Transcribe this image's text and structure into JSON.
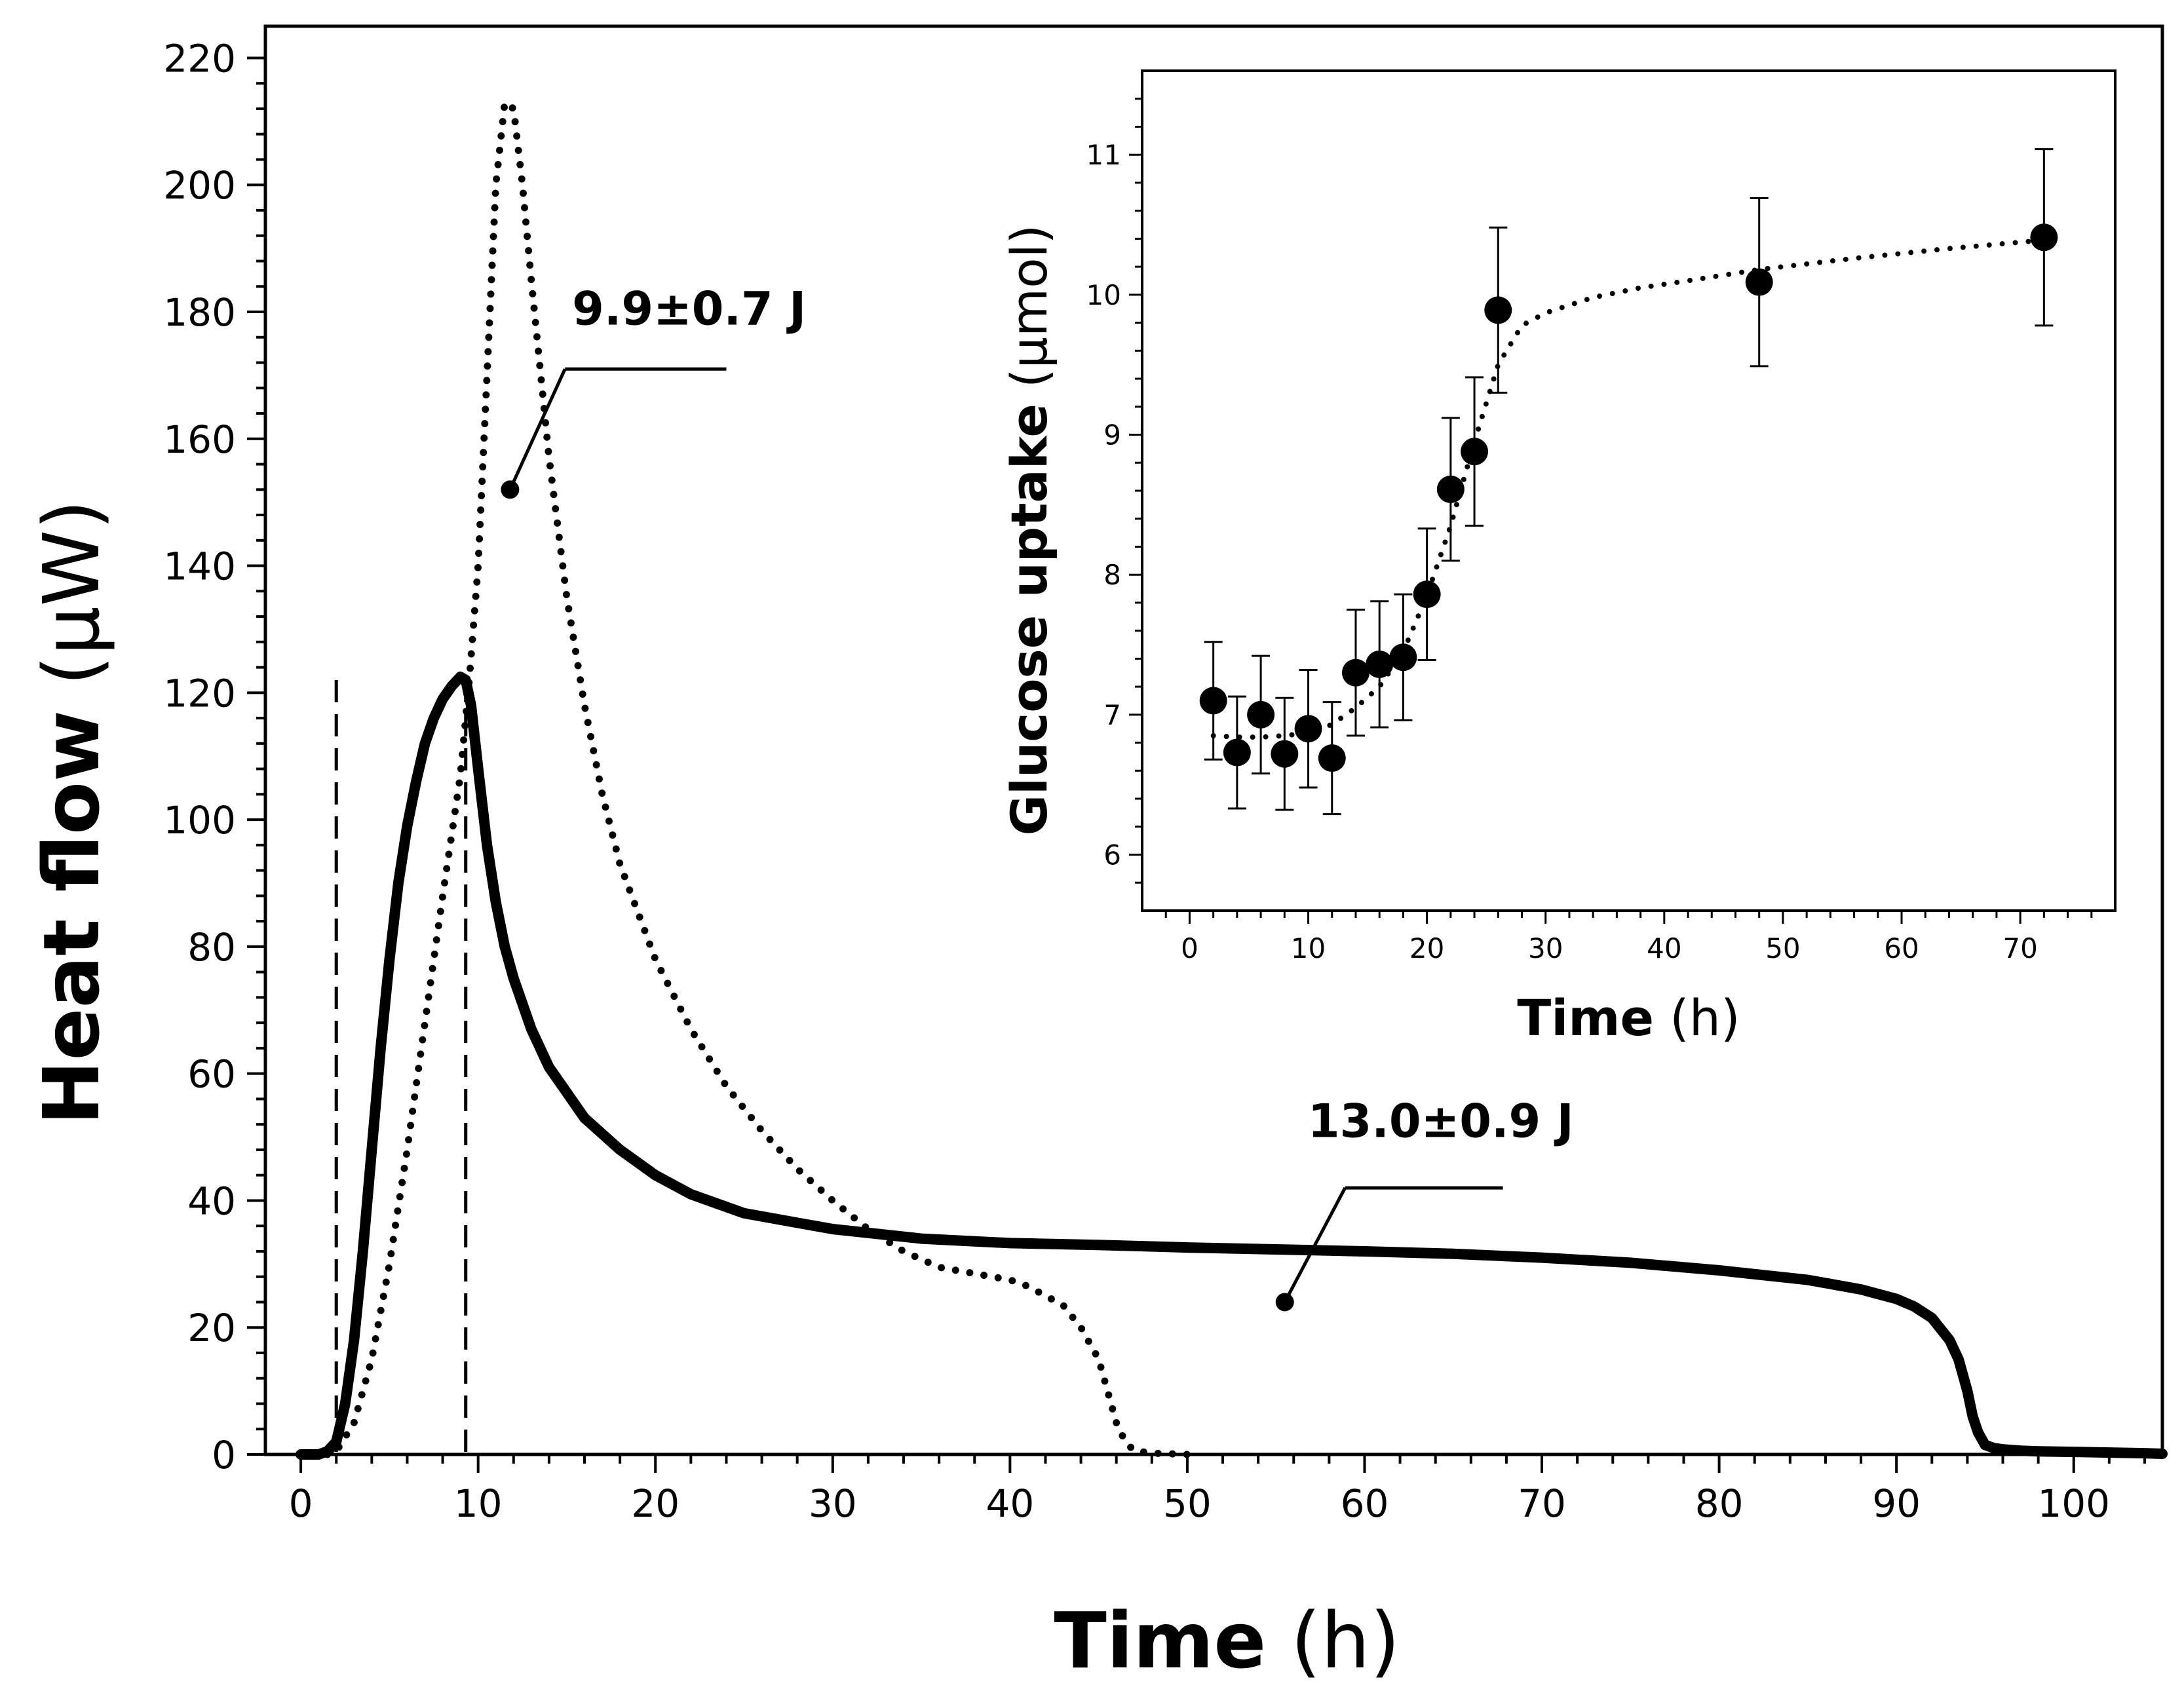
{
  "chart_data": [
    {
      "type": "line",
      "xlabel_bold": "Time",
      "xlabel_unit": "(h)",
      "ylabel_bold": "Heat flow",
      "ylabel_unit": "(μW)",
      "xlim": [
        -2,
        105
      ],
      "ylim": [
        0,
        225
      ],
      "xticks": [
        0,
        10,
        20,
        30,
        40,
        50,
        60,
        70,
        80,
        90,
        100
      ],
      "yticks": [
        0,
        20,
        40,
        60,
        80,
        100,
        120,
        140,
        160,
        180,
        200,
        220
      ],
      "grid": false,
      "series": [
        {
          "style": "solid",
          "x": [
            0,
            1,
            1.5,
            2,
            2.5,
            3,
            3.5,
            4,
            4.5,
            5,
            5.5,
            6,
            6.5,
            7,
            7.5,
            8,
            8.5,
            9,
            9.3,
            9.6,
            10,
            10.5,
            11,
            11.5,
            12,
            13,
            14,
            15,
            16,
            18,
            20,
            22,
            25,
            28,
            30,
            35,
            40,
            45,
            50,
            55,
            60,
            65,
            70,
            75,
            80,
            85,
            88,
            90,
            91,
            92,
            93,
            93.5,
            94,
            94.3,
            94.6,
            95,
            95.5,
            96,
            97,
            98,
            100,
            102,
            104,
            105
          ],
          "y": [
            0,
            0,
            0.5,
            2,
            8,
            18,
            32,
            48,
            64,
            78,
            90,
            99,
            106,
            112,
            116,
            119,
            121,
            122.5,
            122,
            118,
            108,
            96,
            87,
            80,
            75,
            67,
            61,
            57,
            53,
            48,
            44,
            41,
            38,
            36.5,
            35.5,
            34,
            33.3,
            33,
            32.6,
            32.3,
            32,
            31.6,
            31,
            30.2,
            29,
            27.5,
            26,
            24.5,
            23.3,
            21.5,
            18,
            15,
            10,
            6,
            3.5,
            1.5,
            1,
            0.8,
            0.6,
            0.5,
            0.4,
            0.3,
            0.2,
            0.1
          ]
        },
        {
          "style": "dotted",
          "x": [
            1.5,
            2,
            3,
            4,
            5,
            6,
            7,
            8,
            9,
            9.5,
            10,
            10.5,
            11,
            11.5,
            12,
            12.5,
            13,
            14,
            15,
            16,
            17,
            18,
            20,
            22,
            24,
            26,
            28,
            30,
            32,
            34,
            36,
            38,
            40,
            41,
            42,
            43,
            44,
            45,
            45.5,
            46,
            46.5,
            47,
            48,
            49,
            50
          ],
          "y": [
            0,
            0.5,
            5,
            15,
            30,
            48,
            68,
            88,
            107,
            122,
            140,
            170,
            200,
            213,
            212,
            200,
            185,
            157,
            135,
            118,
            104,
            93,
            78,
            67,
            58,
            51,
            45,
            40,
            35.5,
            32,
            29.5,
            28.5,
            27.5,
            26.5,
            25,
            23.5,
            20,
            15,
            10,
            5,
            2,
            0.6,
            0.2,
            0.1,
            0
          ]
        }
      ],
      "vlines": [
        2,
        9.3
      ],
      "annotations": [
        {
          "text": "9.9±0.7 J",
          "point": [
            11.8,
            152
          ],
          "target_series": "dotted"
        },
        {
          "text": "13.0±0.9 J",
          "point": [
            55.5,
            24
          ],
          "target_series": "solid"
        }
      ]
    },
    {
      "type": "scatter",
      "inset": true,
      "xlabel_bold": "Time",
      "xlabel_unit": "(h)",
      "ylabel_bold": "Glucose uptake",
      "ylabel_unit": "(μmol)",
      "xlim": [
        -4,
        78
      ],
      "ylim": [
        5.6,
        11.6
      ],
      "xticks": [
        0,
        10,
        20,
        30,
        40,
        50,
        60,
        70
      ],
      "yticks": [
        6,
        7,
        8,
        9,
        10,
        11
      ],
      "grid": false,
      "points": {
        "x": [
          2,
          4,
          6,
          8,
          10,
          12,
          14,
          16,
          18,
          20,
          22,
          24,
          26,
          48,
          72
        ],
        "y": [
          7.1,
          6.73,
          7.0,
          6.72,
          6.9,
          6.69,
          7.3,
          7.36,
          7.41,
          7.86,
          8.61,
          8.88,
          9.89,
          10.09,
          10.41
        ],
        "err": [
          0.42,
          0.4,
          0.42,
          0.4,
          0.42,
          0.4,
          0.45,
          0.45,
          0.45,
          0.47,
          0.51,
          0.53,
          0.59,
          0.6,
          0.63
        ]
      },
      "fit": {
        "style": "dotted",
        "x": [
          2,
          4,
          6,
          8,
          10,
          12,
          14,
          16,
          18,
          20,
          22,
          24,
          26,
          28,
          30,
          34,
          38,
          42,
          48,
          56,
          64,
          72
        ],
        "y": [
          6.85,
          6.84,
          6.84,
          6.85,
          6.87,
          6.93,
          7.05,
          7.2,
          7.45,
          7.85,
          8.35,
          8.95,
          9.5,
          9.78,
          9.87,
          9.98,
          10.05,
          10.1,
          10.18,
          10.26,
          10.33,
          10.39
        ]
      }
    }
  ]
}
